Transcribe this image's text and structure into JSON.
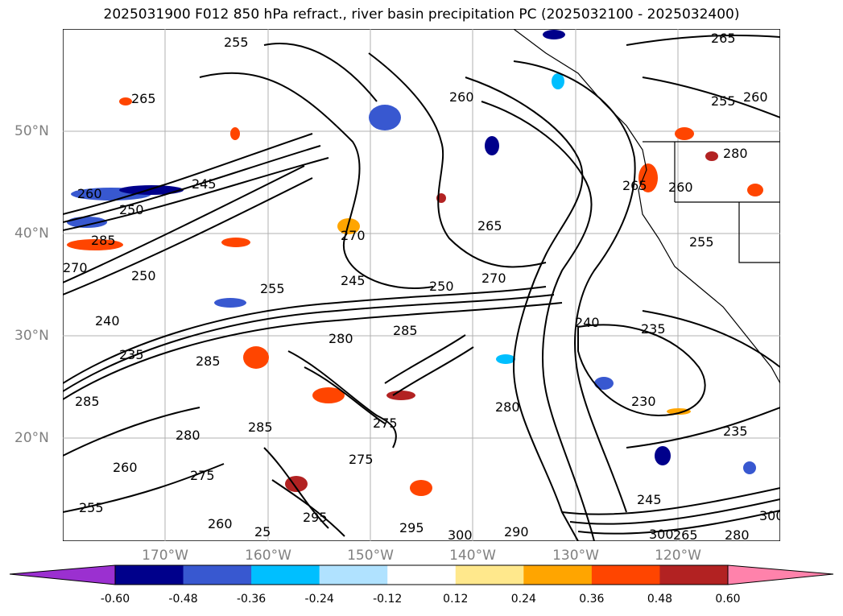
{
  "title": "2025031900 F012 850 hPa refract., river basin precipitation PC (2025032100 - 2025032400)",
  "lat_labels": [
    "50°N",
    "40°N",
    "30°N",
    "20°N"
  ],
  "lon_labels": [
    "170°W",
    "160°W",
    "150°W",
    "140°W",
    "130°W",
    "120°W"
  ],
  "contour_labels": [
    "255",
    "265",
    "265",
    "260",
    "255",
    "260",
    "250",
    "245",
    "260",
    "250",
    "285",
    "270",
    "245",
    "255",
    "250",
    "240",
    "235",
    "285",
    "285",
    "280",
    "260",
    "275",
    "265",
    "270",
    "280",
    "275",
    "285",
    "300",
    "295",
    "290",
    "295",
    "280",
    "240",
    "235",
    "230",
    "235",
    "245",
    "300",
    "265",
    "255",
    "260",
    "255",
    "260",
    "280",
    "25",
    "265",
    "280",
    "300",
    "285",
    "270",
    "275"
  ],
  "colorbar": {
    "ticks": [
      "-0.60",
      "-0.48",
      "-0.36",
      "-0.24",
      "-0.12",
      "0.12",
      "0.24",
      "0.36",
      "0.48",
      "0.60"
    ],
    "colors": [
      "#9b30d0",
      "#00008b",
      "#3858d0",
      "#00bfff",
      "#b0e2ff",
      "#ffffff",
      "#ffe88c",
      "#ffa500",
      "#ff4500",
      "#b22222",
      "#ff82ab"
    ]
  }
}
